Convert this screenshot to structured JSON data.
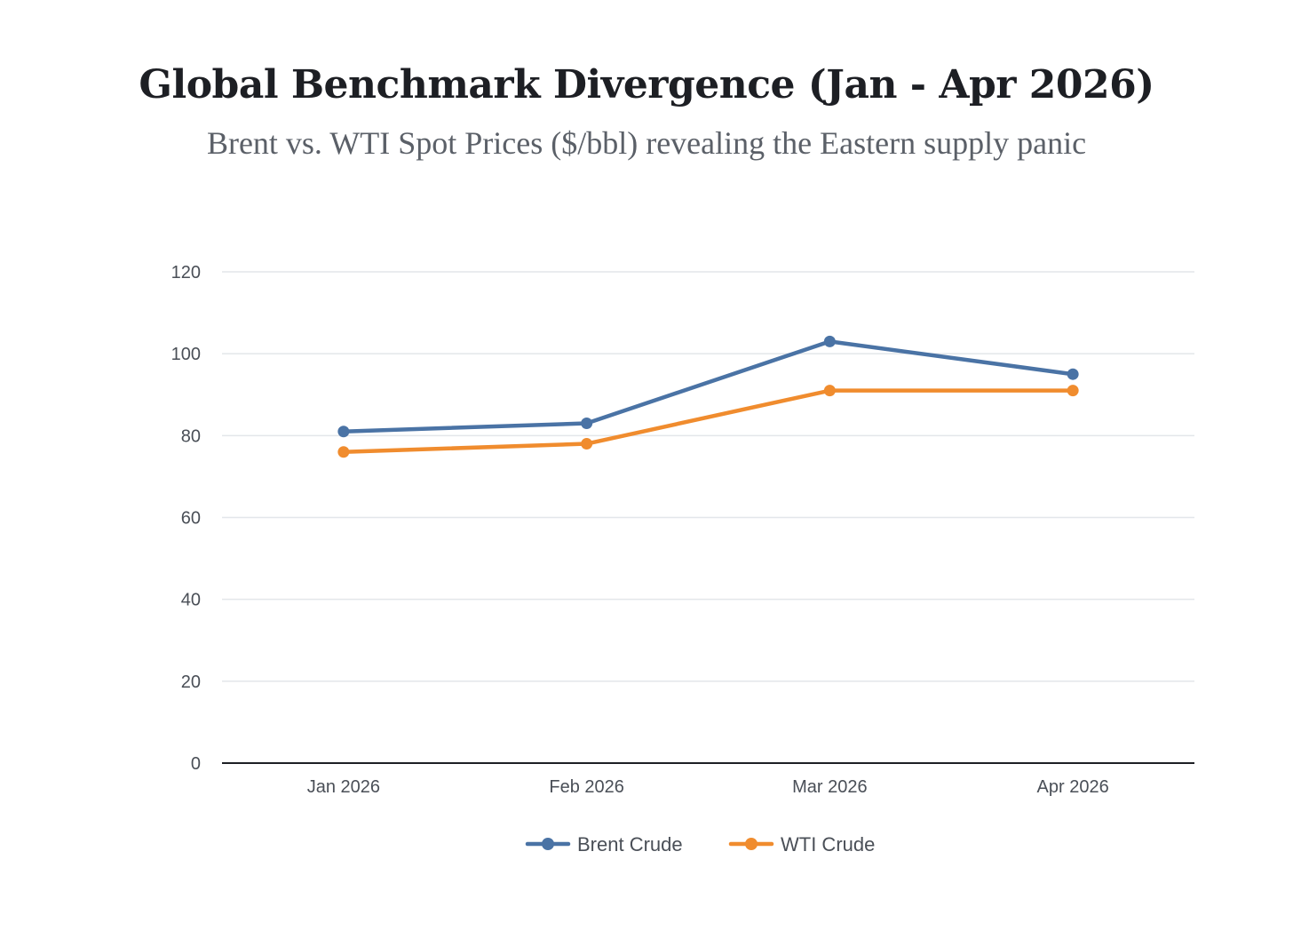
{
  "chart_data": {
    "type": "line",
    "title": "Global Benchmark Divergence (Jan - Apr 2026)",
    "subtitle": "Brent vs. WTI Spot Prices ($/bbl) revealing the Eastern supply panic",
    "categories": [
      "Jan 2026",
      "Feb 2026",
      "Mar 2026",
      "Apr 2026"
    ],
    "series": [
      {
        "name": "Brent Crude",
        "color": "#4a73a5",
        "values": [
          81,
          83,
          103,
          95
        ]
      },
      {
        "name": "WTI Crude",
        "color": "#f08c2e",
        "values": [
          76,
          78,
          91,
          91
        ]
      }
    ],
    "ylim": [
      0,
      120
    ],
    "yticks": [
      0,
      20,
      40,
      60,
      80,
      100,
      120
    ],
    "xlabel": "",
    "ylabel": "",
    "grid": true,
    "legend": "bottom-center"
  }
}
